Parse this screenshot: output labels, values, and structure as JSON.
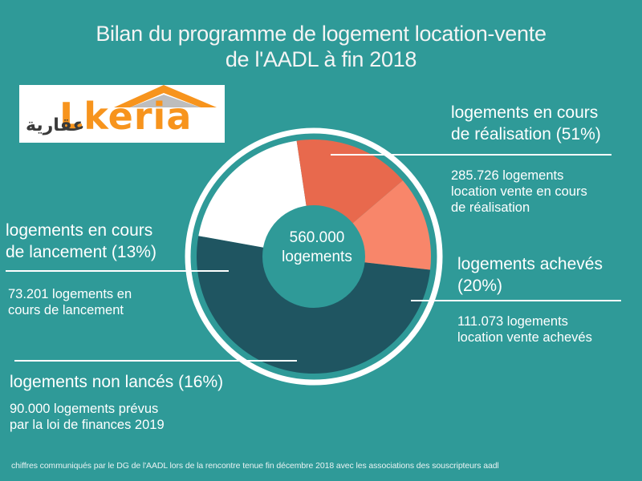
{
  "title_line1": "Bilan du programme de logement location-vente",
  "title_line2": "de l'AADL à fin 2018",
  "logo": {
    "latin": "Lkeria",
    "arabic": "عقارية"
  },
  "center": {
    "line1": "560.000",
    "line2": "logements"
  },
  "labels": {
    "realisation": {
      "heading1": "logements en cours",
      "heading2": "de réalisation (51%)",
      "detail1": "285.726 logements",
      "detail2": "location vente en cours",
      "detail3": "de réalisation"
    },
    "acheves": {
      "heading1": "logements achevés",
      "heading2": "(20%)",
      "detail1": "111.073 logements",
      "detail2": "location vente achevés"
    },
    "lancement": {
      "heading1": "logements  en cours",
      "heading2": "de lancement  (13%)",
      "detail1": "73.201 logements en",
      "detail2": "cours de lancement"
    },
    "non_lances": {
      "heading": "logements non lancés (16%)",
      "detail1": "90.000 logements prévus",
      "detail2": "par la loi de finances 2019"
    }
  },
  "footnote": "chiffres communiqués par le DG de l'AADL lors de la rencontre tenue fin décembre 2018 avec les associations des souscripteurs aadl",
  "colors": {
    "background": "#2f9a98",
    "ring": "#ffffff",
    "center_disc": "#2f9a98"
  },
  "chart_data": {
    "type": "pie",
    "total": 560000,
    "series": [
      {
        "name": "logements en cours de réalisation",
        "value": 285726,
        "percent": 51,
        "color": "#1f5561"
      },
      {
        "name": "logements achevés",
        "value": 111073,
        "percent": 20,
        "color": "#ffffff"
      },
      {
        "name": "logements non lancés",
        "value": 90000,
        "percent": 16,
        "color": "#e8694d"
      },
      {
        "name": "logements en cours de lancement",
        "value": 73201,
        "percent": 13,
        "color": "#f8866a"
      }
    ]
  }
}
